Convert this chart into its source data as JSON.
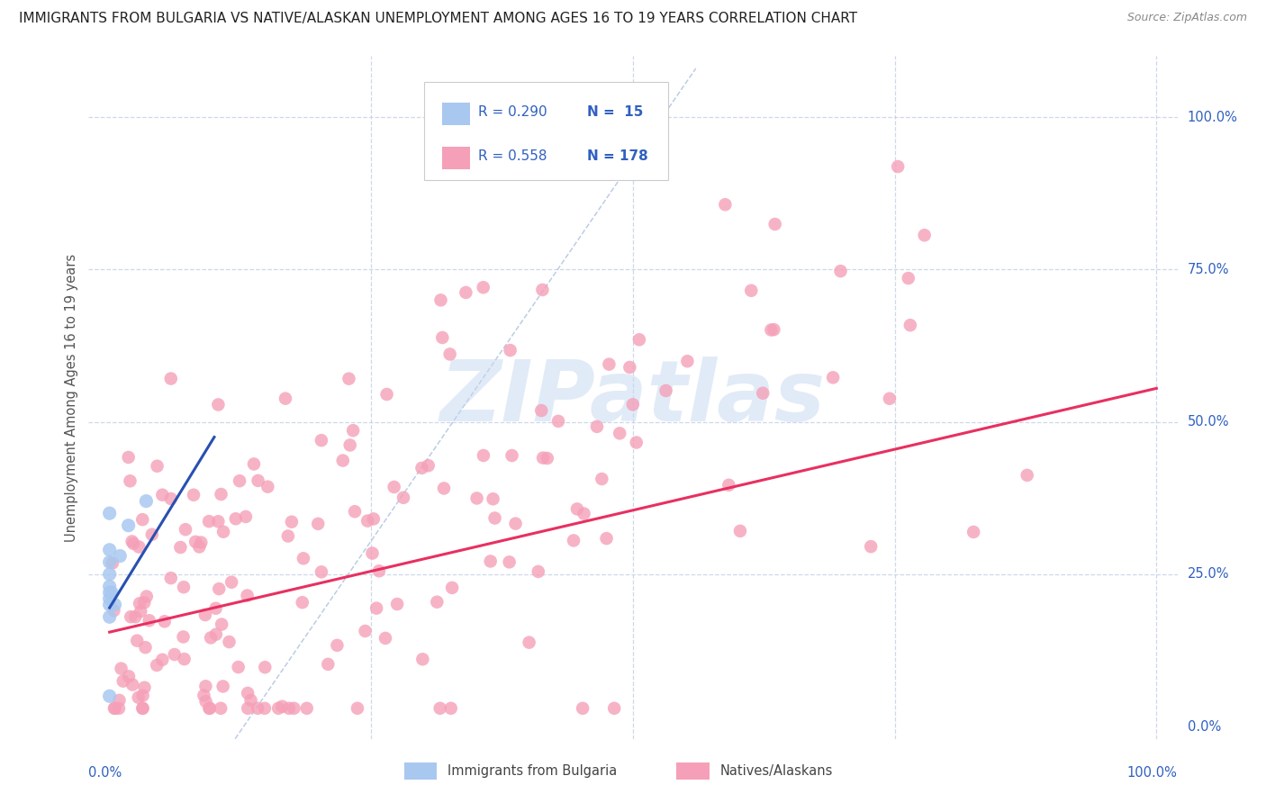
{
  "title": "IMMIGRANTS FROM BULGARIA VS NATIVE/ALASKAN UNEMPLOYMENT AMONG AGES 16 TO 19 YEARS CORRELATION CHART",
  "source": "Source: ZipAtlas.com",
  "ylabel": "Unemployment Among Ages 16 to 19 years",
  "ytick_labels": [
    "0.0%",
    "25.0%",
    "50.0%",
    "75.0%",
    "100.0%"
  ],
  "ytick_values": [
    0.0,
    0.25,
    0.5,
    0.75,
    1.0
  ],
  "xtick_label_left": "0.0%",
  "xtick_label_right": "100.0%",
  "legend_blue_R": "R = 0.290",
  "legend_blue_N": "N =  15",
  "legend_pink_R": "R = 0.558",
  "legend_pink_N": "N = 178",
  "legend_label_blue": "Immigrants from Bulgaria",
  "legend_label_pink": "Natives/Alaskans",
  "blue_scatter_color": "#a8c8f0",
  "pink_scatter_color": "#f5a0b8",
  "blue_line_color": "#2850b0",
  "pink_line_color": "#e83060",
  "dashed_line_color": "#b0c4e0",
  "pink_intercept": 0.155,
  "pink_slope": 0.4,
  "blue_intercept": 0.195,
  "blue_slope": 2.8,
  "watermark_text": "ZIPatlas",
  "watermark_color": "#c5d8f0",
  "background_color": "#ffffff",
  "grid_color": "#c8d4e8",
  "title_fontsize": 11,
  "source_fontsize": 9,
  "legend_text_color": "#3060c0",
  "legend_text_fontsize": 11,
  "tick_label_color": "#3060c0",
  "tick_label_fontsize": 10.5,
  "ylabel_color": "#555555",
  "ylabel_fontsize": 10.5
}
